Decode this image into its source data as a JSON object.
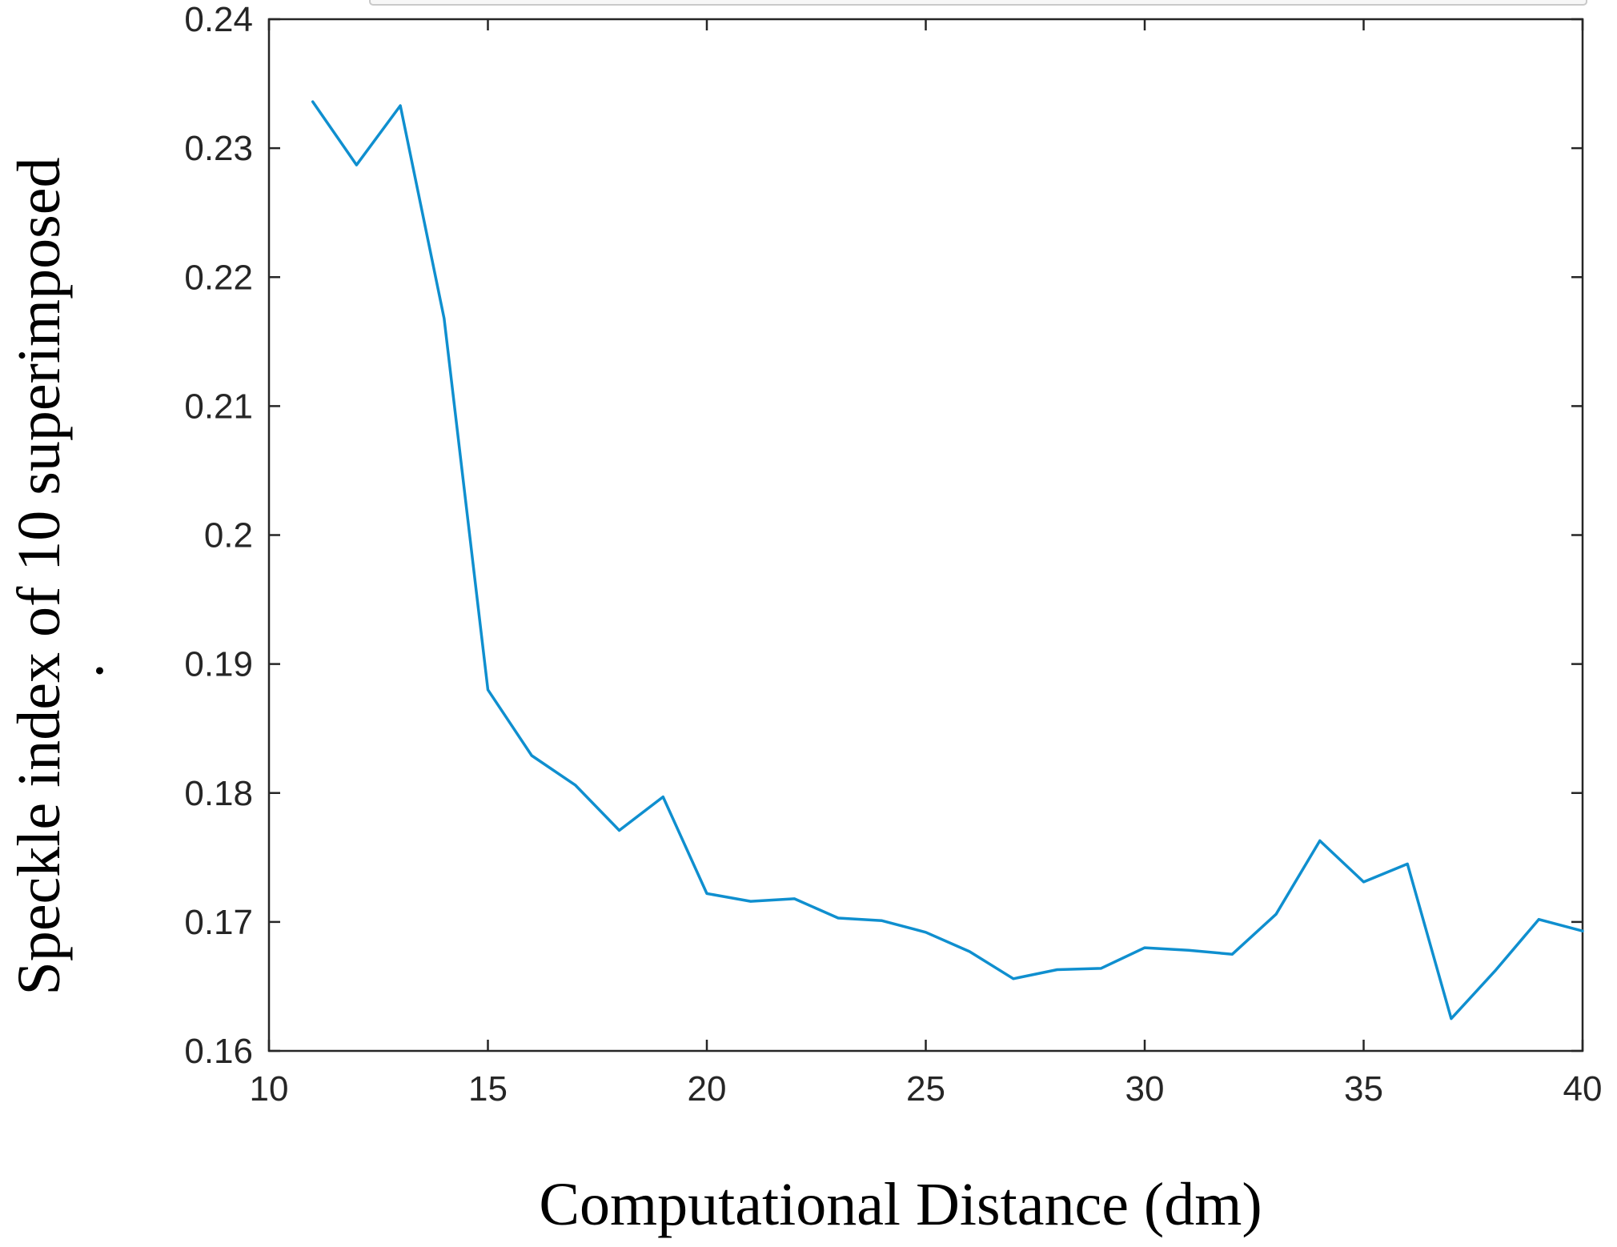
{
  "chart_data": {
    "type": "line",
    "title": "",
    "xlabel": "Computational Distance (dm)",
    "ylabel": "Speckle index of 10 superimposed",
    "ylabel_dot": "·",
    "xlim": [
      10,
      40
    ],
    "ylim": [
      0.16,
      0.24
    ],
    "xticks": [
      10,
      15,
      20,
      25,
      30,
      35,
      40
    ],
    "xtick_labels": [
      "10",
      "15",
      "20",
      "25",
      "30",
      "35",
      "40"
    ],
    "yticks": [
      0.16,
      0.17,
      0.18,
      0.19,
      0.2,
      0.21,
      0.22,
      0.23,
      0.24
    ],
    "ytick_labels": [
      "0.16",
      "0.17",
      "0.18",
      "0.19",
      "0.2",
      "0.21",
      "0.22",
      "0.23",
      "0.24"
    ],
    "grid": false,
    "legend": "none",
    "line_color": "#0f8fcf",
    "series": [
      {
        "x": [
          11,
          12,
          13,
          14,
          15,
          16,
          17,
          18,
          19,
          20,
          21,
          22,
          23,
          24,
          25,
          26,
          27,
          28,
          29,
          30,
          31,
          32,
          33,
          34,
          35,
          36,
          37,
          38,
          39,
          40
        ],
        "values": [
          0.2336,
          0.2287,
          0.2333,
          0.2168,
          0.188,
          0.1829,
          0.1806,
          0.1771,
          0.1797,
          0.1722,
          0.1716,
          0.1718,
          0.1703,
          0.1701,
          0.1692,
          0.1677,
          0.1656,
          0.1663,
          0.1664,
          0.168,
          0.1678,
          0.1675,
          0.1706,
          0.1763,
          0.1731,
          0.1745,
          0.1625,
          0.1662,
          0.1702,
          0.1693
        ]
      }
    ]
  }
}
